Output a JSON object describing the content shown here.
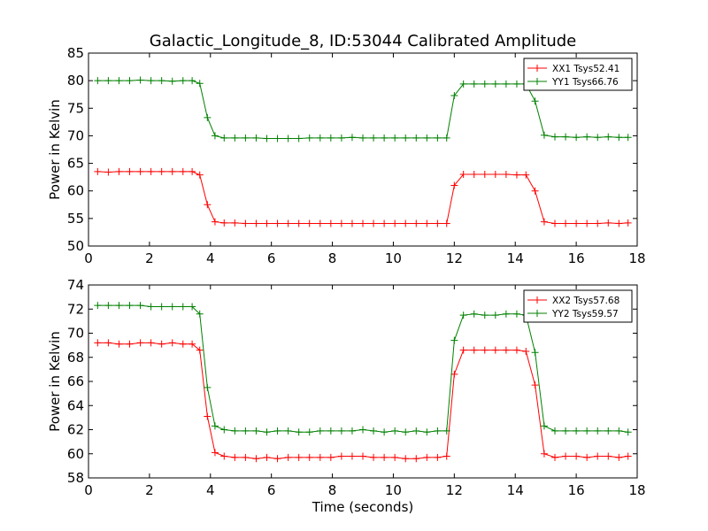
{
  "title": "Galactic_Longitude_8, ID:53044 Calibrated Amplitude",
  "chart_data": [
    {
      "type": "line",
      "title": "Galactic_Longitude_8, ID:53044 Calibrated Amplitude",
      "xlabel": "",
      "ylabel": "Power in Kelvin",
      "xlim": [
        0,
        18
      ],
      "ylim": [
        50,
        85
      ],
      "xticks": [
        "0",
        "2",
        "4",
        "6",
        "8",
        "10",
        "12",
        "14",
        "16",
        "18"
      ],
      "yticks": [
        "50",
        "55",
        "60",
        "65",
        "70",
        "75",
        "80",
        "85"
      ],
      "legend_position": "top-right",
      "x": [
        0.3,
        0.65,
        1.0,
        1.35,
        1.7,
        2.05,
        2.4,
        2.75,
        3.1,
        3.4,
        3.65,
        3.9,
        4.15,
        4.45,
        4.8,
        5.15,
        5.5,
        5.85,
        6.2,
        6.55,
        6.9,
        7.25,
        7.6,
        7.95,
        8.3,
        8.65,
        9.0,
        9.35,
        9.7,
        10.05,
        10.4,
        10.75,
        11.1,
        11.45,
        11.75,
        12.0,
        12.3,
        12.65,
        13.0,
        13.35,
        13.7,
        14.05,
        14.35,
        14.65,
        14.95,
        15.3,
        15.65,
        16.0,
        16.35,
        16.7,
        17.05,
        17.4,
        17.7
      ],
      "series": [
        {
          "name": "XX1 Tsys52.41",
          "color": "#ff0000",
          "values": [
            63.5,
            63.4,
            63.5,
            63.5,
            63.5,
            63.5,
            63.5,
            63.5,
            63.5,
            63.5,
            62.9,
            57.5,
            54.4,
            54.2,
            54.2,
            54.1,
            54.1,
            54.1,
            54.1,
            54.1,
            54.1,
            54.1,
            54.1,
            54.1,
            54.1,
            54.1,
            54.1,
            54.1,
            54.1,
            54.1,
            54.1,
            54.1,
            54.1,
            54.1,
            54.1,
            61.0,
            63.0,
            63.0,
            63.0,
            63.0,
            63.0,
            62.9,
            62.9,
            60.0,
            54.4,
            54.1,
            54.1,
            54.1,
            54.1,
            54.1,
            54.2,
            54.1,
            54.2
          ]
        },
        {
          "name": "YY1 Tsys66.76",
          "color": "#008000",
          "values": [
            80.0,
            80.0,
            80.0,
            80.0,
            80.1,
            80.0,
            80.0,
            79.9,
            80.0,
            80.0,
            79.5,
            73.3,
            70.0,
            69.6,
            69.6,
            69.6,
            69.6,
            69.5,
            69.5,
            69.5,
            69.5,
            69.6,
            69.6,
            69.6,
            69.6,
            69.7,
            69.6,
            69.6,
            69.6,
            69.6,
            69.6,
            69.6,
            69.6,
            69.6,
            69.6,
            77.3,
            79.4,
            79.4,
            79.4,
            79.4,
            79.4,
            79.4,
            79.4,
            76.3,
            70.1,
            69.8,
            69.8,
            69.7,
            69.8,
            69.7,
            69.8,
            69.7,
            69.7
          ]
        }
      ]
    },
    {
      "type": "line",
      "title": "",
      "xlabel": "Time (seconds)",
      "ylabel": "Power in Kelvin",
      "xlim": [
        0,
        18
      ],
      "ylim": [
        58,
        74
      ],
      "xticks": [
        "0",
        "2",
        "4",
        "6",
        "8",
        "10",
        "12",
        "14",
        "16",
        "18"
      ],
      "yticks": [
        "58",
        "60",
        "62",
        "64",
        "66",
        "68",
        "70",
        "72",
        "74"
      ],
      "legend_position": "top-right",
      "x": [
        0.3,
        0.65,
        1.0,
        1.35,
        1.7,
        2.05,
        2.4,
        2.75,
        3.1,
        3.4,
        3.65,
        3.9,
        4.15,
        4.45,
        4.8,
        5.15,
        5.5,
        5.85,
        6.2,
        6.55,
        6.9,
        7.25,
        7.6,
        7.95,
        8.3,
        8.65,
        9.0,
        9.35,
        9.7,
        10.05,
        10.4,
        10.75,
        11.1,
        11.45,
        11.75,
        12.0,
        12.3,
        12.65,
        13.0,
        13.35,
        13.7,
        14.05,
        14.35,
        14.65,
        14.95,
        15.3,
        15.65,
        16.0,
        16.35,
        16.7,
        17.05,
        17.4,
        17.7
      ],
      "series": [
        {
          "name": "XX2 Tsys57.68",
          "color": "#ff0000",
          "values": [
            69.2,
            69.2,
            69.1,
            69.1,
            69.2,
            69.2,
            69.1,
            69.2,
            69.1,
            69.1,
            68.6,
            63.1,
            60.1,
            59.8,
            59.7,
            59.7,
            59.6,
            59.7,
            59.6,
            59.7,
            59.7,
            59.7,
            59.7,
            59.7,
            59.8,
            59.8,
            59.8,
            59.7,
            59.7,
            59.7,
            59.6,
            59.6,
            59.7,
            59.7,
            59.8,
            66.6,
            68.6,
            68.6,
            68.6,
            68.6,
            68.6,
            68.6,
            68.5,
            65.7,
            60.0,
            59.7,
            59.8,
            59.8,
            59.7,
            59.8,
            59.8,
            59.7,
            59.8
          ]
        },
        {
          "name": "YY2 Tsys59.57",
          "color": "#008000",
          "values": [
            72.3,
            72.3,
            72.3,
            72.3,
            72.3,
            72.2,
            72.2,
            72.2,
            72.2,
            72.2,
            71.6,
            65.5,
            62.3,
            62.0,
            61.9,
            61.9,
            61.9,
            61.8,
            61.9,
            61.9,
            61.8,
            61.8,
            61.9,
            61.9,
            61.9,
            61.9,
            62.0,
            61.9,
            61.8,
            61.9,
            61.8,
            61.9,
            61.8,
            61.9,
            61.9,
            69.4,
            71.5,
            71.6,
            71.5,
            71.5,
            71.6,
            71.6,
            71.5,
            68.4,
            62.3,
            61.9,
            61.9,
            61.9,
            61.9,
            61.9,
            61.9,
            61.9,
            61.8
          ]
        }
      ]
    }
  ]
}
